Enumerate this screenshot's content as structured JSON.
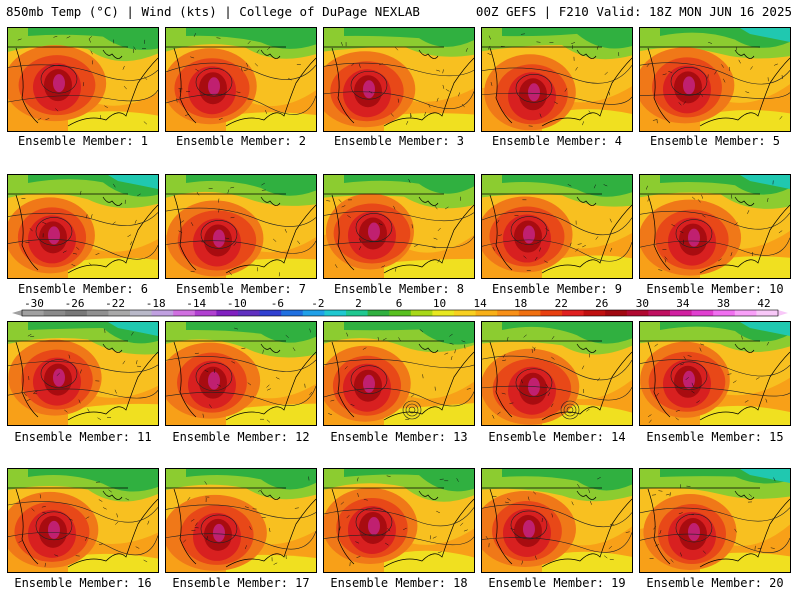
{
  "header": {
    "left_title": "850mb Temp (°C) | Wind (kts) | College of DuPage NEXLAB",
    "right_title": "00Z GEFS | F210 Valid: 18Z MON JUN 16 2025"
  },
  "panels": [
    {
      "label": "Ensemble Member: 1"
    },
    {
      "label": "Ensemble Member: 2"
    },
    {
      "label": "Ensemble Member: 3"
    },
    {
      "label": "Ensemble Member: 4"
    },
    {
      "label": "Ensemble Member: 5"
    },
    {
      "label": "Ensemble Member: 6"
    },
    {
      "label": "Ensemble Member: 7"
    },
    {
      "label": "Ensemble Member: 8"
    },
    {
      "label": "Ensemble Member: 9"
    },
    {
      "label": "Ensemble Member: 10"
    },
    {
      "label": "Ensemble Member: 11"
    },
    {
      "label": "Ensemble Member: 12"
    },
    {
      "label": "Ensemble Member: 13"
    },
    {
      "label": "Ensemble Member: 14"
    },
    {
      "label": "Ensemble Member: 15"
    },
    {
      "label": "Ensemble Member: 16"
    },
    {
      "label": "Ensemble Member: 17"
    },
    {
      "label": "Ensemble Member: 18"
    },
    {
      "label": "Ensemble Member: 19"
    },
    {
      "label": "Ensemble Member: 20"
    }
  ],
  "colorbar": {
    "tick_labels": [
      "-30",
      "-26",
      "-22",
      "-18",
      "-14",
      "-10",
      "-6",
      "-2",
      "2",
      "6",
      "10",
      "14",
      "18",
      "22",
      "26",
      "30",
      "34",
      "38",
      "42"
    ],
    "colors": [
      "#a0a0a0",
      "#8a8a8a",
      "#787878",
      "#909090",
      "#a8a8a8",
      "#b8b8c8",
      "#c0a0e0",
      "#d070e0",
      "#b040d0",
      "#8020c0",
      "#6030c0",
      "#3040d0",
      "#2070e0",
      "#20a0e8",
      "#20c8d0",
      "#20c890",
      "#30b040",
      "#58c020",
      "#a8d818",
      "#e8e820",
      "#f8d020",
      "#f8b018",
      "#f89018",
      "#f07010",
      "#e84010",
      "#e02020",
      "#c01010",
      "#a00810",
      "#b00830",
      "#c01060",
      "#d020a0",
      "#e040d0",
      "#f070f0",
      "#f8a0f8",
      "#f8c8f8"
    ]
  },
  "map_colors": {
    "green": "#30b040",
    "light_green": "#8ccc30",
    "yellow": "#f0e020",
    "gold": "#f8c020",
    "orange": "#f8a018",
    "dark_orange": "#f07818",
    "red_orange": "#e84818",
    "red": "#d82020",
    "dark_red": "#a80c10",
    "magenta": "#c02070",
    "teal": "#20c8b0"
  }
}
